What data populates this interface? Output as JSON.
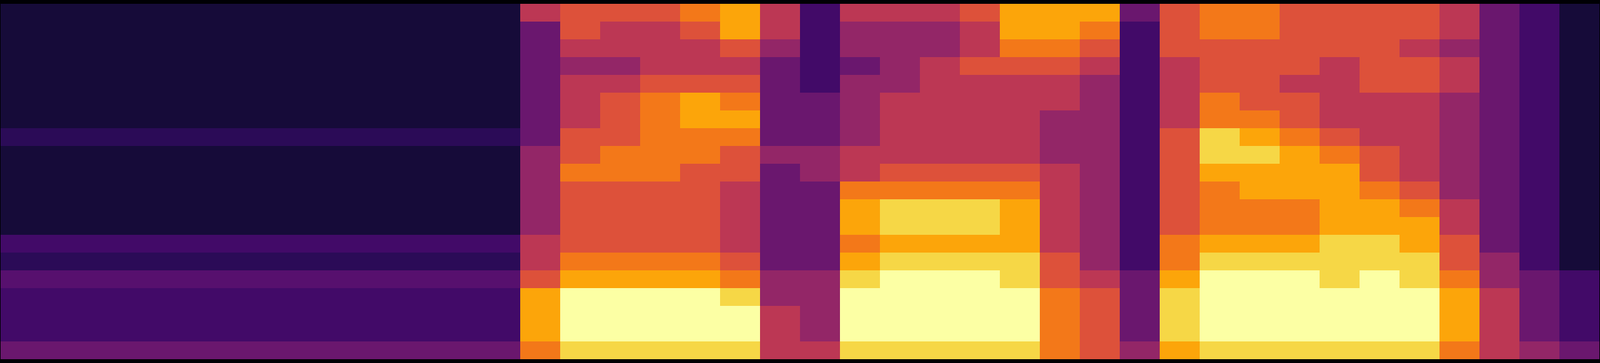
{
  "chart_data": {
    "type": "heatmap",
    "tick_labels": false,
    "color": "inferno",
    "zlim": [
      0,
      10
    ],
    "z": [
      [
        1,
        1,
        1,
        1,
        1,
        1,
        1,
        1.5,
        1,
        1,
        1,
        1,
        1,
        2,
        1.5,
        2.5,
        2,
        2,
        2,
        3
      ],
      [
        1,
        1,
        1,
        1,
        1,
        1,
        1,
        1.5,
        1,
        1,
        1,
        1,
        1,
        2,
        1.5,
        2.5,
        2,
        2,
        2,
        3
      ],
      [
        1,
        1,
        1,
        1,
        1,
        1,
        1,
        1.5,
        1,
        1,
        1,
        1,
        1,
        2,
        1.5,
        2.5,
        2,
        2,
        2,
        3
      ],
      [
        1,
        1,
        1,
        1,
        1,
        1,
        1,
        1.5,
        1,
        1,
        1,
        1,
        1,
        2,
        1.5,
        2.5,
        2,
        2,
        2,
        3
      ],
      [
        1,
        1,
        1,
        1,
        1,
        1,
        1,
        1.5,
        1,
        1,
        1,
        1,
        1,
        2,
        1.5,
        2.5,
        2,
        2,
        2,
        3
      ],
      [
        1,
        1,
        1,
        1,
        1,
        1,
        1,
        1.5,
        1,
        1,
        1,
        1,
        1,
        2,
        1.5,
        2.5,
        2,
        2,
        2,
        3
      ],
      [
        1,
        1,
        1,
        1,
        1,
        1,
        1,
        1.5,
        1,
        1,
        1,
        1,
        1,
        2,
        1.5,
        2.5,
        2,
        2,
        2,
        3
      ],
      [
        1,
        1,
        1,
        1,
        1,
        1,
        1,
        1.5,
        1,
        1,
        1,
        1,
        1,
        2,
        1.5,
        2.5,
        2,
        2,
        2,
        3
      ],
      [
        1,
        1,
        1,
        1,
        1,
        1,
        1,
        1.5,
        1,
        1,
        1,
        1,
        1,
        2,
        1.5,
        2.5,
        2,
        2,
        2,
        3
      ],
      [
        1,
        1,
        1,
        1,
        1,
        1,
        1,
        1.5,
        1,
        1,
        1,
        1,
        1,
        2,
        1.5,
        2.5,
        2,
        2,
        2,
        3
      ],
      [
        1,
        1,
        1,
        1,
        1,
        1,
        1,
        1.5,
        1,
        1,
        1,
        1,
        1,
        2,
        1.5,
        2.5,
        2,
        2,
        2,
        3
      ],
      [
        1,
        1,
        1,
        1,
        1,
        1,
        1,
        1.5,
        1,
        1,
        1,
        1,
        1,
        2,
        1.5,
        2.5,
        2,
        2,
        2,
        3
      ],
      [
        1,
        1,
        1,
        1,
        1,
        1,
        1,
        1.5,
        1,
        1,
        1,
        1,
        1,
        2,
        1.5,
        2.5,
        2,
        2,
        2,
        3
      ],
      [
        5,
        3,
        3,
        3,
        3,
        3,
        3,
        3,
        4,
        4,
        4,
        4,
        4,
        5,
        5,
        6,
        8,
        8,
        8,
        7
      ],
      [
        6,
        6,
        5,
        4,
        5,
        5,
        5,
        6,
        6,
        7,
        6,
        6,
        6,
        6,
        7,
        8,
        10,
        10,
        10,
        9
      ],
      [
        6,
        5,
        5,
        4,
        5,
        6,
        6,
        6,
        7,
        7,
        6,
        6,
        6,
        6,
        7,
        8,
        10,
        10,
        10,
        9
      ],
      [
        6,
        5,
        5,
        5,
        6,
        7,
        7,
        7,
        7,
        7,
        6,
        6,
        6,
        6,
        7,
        8,
        10,
        10,
        10,
        9
      ],
      [
        7,
        6,
        5,
        5,
        6,
        8,
        8,
        7,
        7,
        6,
        6,
        6,
        6,
        6,
        7,
        8,
        10,
        10,
        10,
        9
      ],
      [
        8,
        8,
        6,
        5,
        6,
        7,
        8,
        7,
        6,
        6,
        5,
        5,
        5,
        5,
        6,
        7,
        9,
        10,
        10,
        9
      ],
      [
        5,
        5,
        4,
        3,
        3,
        3,
        3,
        3,
        4,
        3,
        3,
        3,
        3,
        3,
        3,
        4,
        4,
        5,
        5,
        5
      ],
      [
        2,
        2,
        2,
        2,
        2,
        3,
        3,
        3,
        4,
        4,
        3,
        3,
        3,
        3,
        3,
        4,
        4,
        4,
        4,
        5
      ],
      [
        5,
        4,
        4,
        3,
        4,
        4,
        4,
        4,
        5,
        5,
        7,
        8,
        8,
        7,
        8,
        9,
        10,
        10,
        10,
        9
      ],
      [
        5,
        4,
        4,
        4,
        4,
        5,
        5,
        5,
        5,
        6,
        7,
        9,
        9,
        8,
        9,
        10,
        10,
        10,
        10,
        9
      ],
      [
        5,
        4,
        4,
        5,
        5,
        5,
        5,
        5,
        5,
        6,
        7,
        9,
        9,
        8,
        9,
        10,
        10,
        10,
        10,
        9
      ],
      [
        6,
        5,
        5,
        6,
        5,
        5,
        5,
        5,
        5,
        6,
        7,
        9,
        9,
        8,
        9,
        10,
        10,
        10,
        10,
        9
      ],
      [
        8,
        8,
        7,
        6,
        5,
        5,
        5,
        5,
        5,
        6,
        7,
        8,
        8,
        8,
        9,
        9,
        10,
        10,
        10,
        9
      ],
      [
        8,
        8,
        7,
        6,
        5,
        5,
        4,
        4,
        4,
        5,
        5,
        5,
        5,
        5,
        6,
        6,
        7,
        7,
        7,
        7
      ],
      [
        8,
        7,
        6,
        5,
        4,
        4,
        4,
        4,
        4,
        4,
        4,
        4,
        4,
        4,
        4,
        5,
        6,
        6,
        6,
        6
      ],
      [
        3,
        2,
        2,
        2,
        2,
        2,
        2,
        2,
        2,
        2,
        2,
        2,
        2,
        2,
        2,
        3,
        3,
        3,
        3,
        4
      ],
      [
        6,
        6,
        6,
        5,
        5,
        5,
        5,
        6,
        6,
        6,
        6,
        6,
        6,
        7,
        7,
        8,
        9,
        9,
        9,
        8
      ],
      [
        7,
        7,
        6,
        6,
        6,
        7,
        7,
        9,
        9,
        8,
        7,
        7,
        7,
        8,
        9,
        10,
        10,
        10,
        10,
        9
      ],
      [
        7,
        7,
        6,
        6,
        6,
        6,
        7,
        8,
        9,
        8,
        8,
        7,
        7,
        8,
        9,
        10,
        10,
        10,
        10,
        9
      ],
      [
        6,
        6,
        6,
        6,
        5,
        6,
        6,
        7,
        8,
        8,
        8,
        7,
        7,
        8,
        9,
        10,
        10,
        10,
        10,
        9
      ],
      [
        6,
        6,
        6,
        5,
        5,
        5,
        5,
        6,
        7,
        8,
        8,
        8,
        8,
        9,
        9,
        9,
        10,
        10,
        10,
        9
      ],
      [
        6,
        6,
        6,
        6,
        6,
        5,
        5,
        5,
        6,
        6,
        7,
        8,
        8,
        9,
        9,
        10,
        10,
        10,
        10,
        9
      ],
      [
        6,
        6,
        5,
        6,
        6,
        5,
        5,
        5,
        5,
        5,
        6,
        7,
        8,
        8,
        9,
        9,
        10,
        10,
        10,
        9
      ],
      [
        5,
        5,
        4,
        5,
        5,
        4,
        4,
        4,
        4,
        4,
        4,
        5,
        5,
        6,
        6,
        7,
        8,
        8,
        8,
        7
      ],
      [
        3,
        3,
        3,
        3,
        3,
        3,
        3,
        3,
        3,
        3,
        3,
        3,
        3,
        3,
        4,
        4,
        5,
        5,
        5,
        5
      ],
      [
        2,
        2,
        2,
        2,
        2,
        2,
        2,
        2,
        2,
        2,
        2,
        2,
        2,
        2,
        2,
        3,
        3,
        3,
        3,
        4
      ],
      [
        1,
        1,
        1,
        1,
        1,
        1,
        1,
        1,
        1,
        1,
        1,
        1,
        1,
        1,
        1,
        2,
        2,
        2,
        2,
        3
      ]
    ]
  }
}
